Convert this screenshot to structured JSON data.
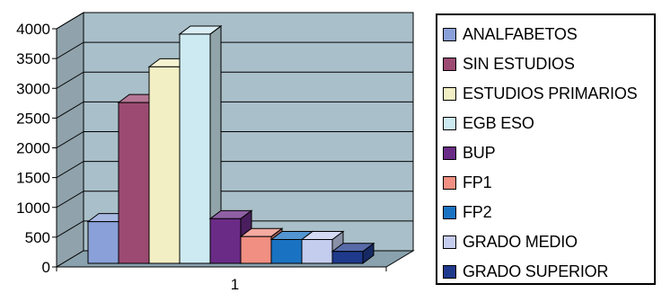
{
  "chart_data": {
    "type": "bar",
    "categories": [
      "1"
    ],
    "ylim": [
      0,
      4000
    ],
    "y_ticks": [
      "0",
      "500",
      "1000",
      "1500",
      "2000",
      "2500",
      "3000",
      "3500",
      "4000"
    ],
    "grid": true,
    "legend_position": "right",
    "series": [
      {
        "name": "ANALFABETOS",
        "values": [
          700
        ],
        "color": "#8aa0d8"
      },
      {
        "name": "SIN ESTUDIOS",
        "values": [
          2700
        ],
        "color": "#9c4a72"
      },
      {
        "name": "ESTUDIOS PRIMARIOS",
        "values": [
          3300
        ],
        "color": "#f3efc4"
      },
      {
        "name": "EGB ESO",
        "values": [
          3850
        ],
        "color": "#cdeaf2"
      },
      {
        "name": "BUP",
        "values": [
          750
        ],
        "color": "#6a2b86"
      },
      {
        "name": "FP1",
        "values": [
          450
        ],
        "color": "#f08f82"
      },
      {
        "name": "FP2",
        "values": [
          400
        ],
        "color": "#1a73c2"
      },
      {
        "name": "GRADO MEDIO",
        "values": [
          400
        ],
        "color": "#c5cdef"
      },
      {
        "name": "GRADO SUPERIOR",
        "values": [
          200
        ],
        "color": "#1f3a8c"
      }
    ]
  },
  "style": {
    "wall_color": "#a9bfc9",
    "floor_color": "#8aa2ad"
  }
}
